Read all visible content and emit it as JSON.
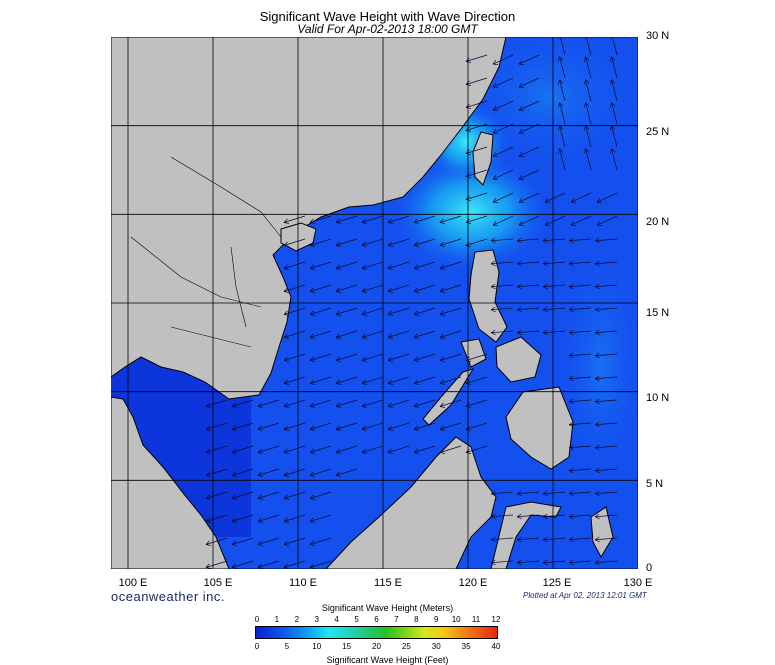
{
  "header": {
    "title": "Significant Wave Height with Wave Direction",
    "subtitle": "Valid For Apr-02-2013 18:00 GMT"
  },
  "axes": {
    "lat_labels": [
      "30 N",
      "25 N",
      "20 N",
      "15 N",
      "10 N",
      "5 N",
      "0"
    ],
    "lon_labels": [
      "100 E",
      "105 E",
      "110 E",
      "115 E",
      "120 E",
      "125 E",
      "130 E"
    ],
    "lat_range": [
      0,
      30
    ],
    "lon_range": [
      99,
      130
    ]
  },
  "footer": {
    "brand": "oceanweather inc.",
    "plotted": "Plotted at Apr 02, 2013 12:01 GMT"
  },
  "colorbar": {
    "title_top": "Significant Wave Height (Meters)",
    "title_bottom": "Significant Wave Height (Feet)",
    "meters_ticks": [
      "0",
      "1",
      "2",
      "3",
      "4",
      "5",
      "6",
      "7",
      "8",
      "9",
      "10",
      "11",
      "12"
    ],
    "feet_ticks": [
      "0",
      "5",
      "10",
      "15",
      "20",
      "25",
      "30",
      "35",
      "40"
    ]
  },
  "colors": {
    "land": "#c0c0c0",
    "sea_deep": "#0a2fe0",
    "sea_mid": "#1457f2",
    "sea_high": "#1aa6f2",
    "sea_peak": "#22e6f6",
    "grid": "#000000",
    "arrow": "#000000"
  },
  "wave_field": {
    "dominant_direction": "toward west / south-west",
    "max_height_m": 3,
    "max_region": "Luzon Strait"
  }
}
